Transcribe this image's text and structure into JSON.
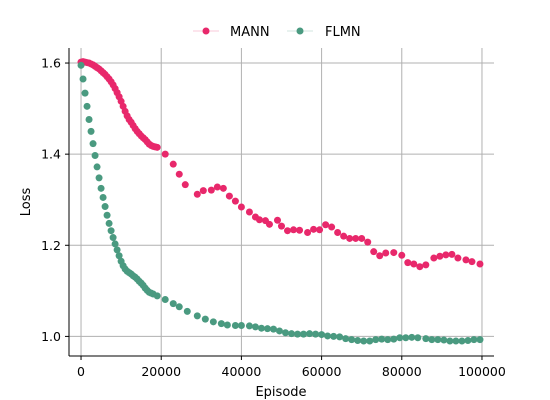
{
  "chart_data": {
    "type": "scatter",
    "title": "",
    "xlabel": "Episode",
    "ylabel": "Loss",
    "xlim": [
      -3000,
      103000
    ],
    "ylim": [
      0.957,
      1.633
    ],
    "x_ticks": [
      0,
      20000,
      40000,
      60000,
      80000,
      100000
    ],
    "x_tick_labels": [
      "0",
      "20000",
      "40000",
      "60000",
      "80000",
      "100000"
    ],
    "y_ticks": [
      1.0,
      1.2,
      1.4,
      1.6
    ],
    "y_tick_labels": [
      "1.0",
      "1.2",
      "1.4",
      "1.6"
    ],
    "grid": true,
    "legend_position": "top-center",
    "series": [
      {
        "name": "MANN",
        "color": "#e8286b",
        "points": [
          [
            0,
            1.602
          ],
          [
            500,
            1.603
          ],
          [
            1000,
            1.602
          ],
          [
            1500,
            1.601
          ],
          [
            2000,
            1.6
          ],
          [
            2500,
            1.598
          ],
          [
            3000,
            1.596
          ],
          [
            3500,
            1.593
          ],
          [
            4000,
            1.59
          ],
          [
            4500,
            1.587
          ],
          [
            5000,
            1.583
          ],
          [
            5500,
            1.579
          ],
          [
            6000,
            1.575
          ],
          [
            6500,
            1.57
          ],
          [
            7000,
            1.565
          ],
          [
            7500,
            1.559
          ],
          [
            8000,
            1.552
          ],
          [
            8500,
            1.544
          ],
          [
            9000,
            1.535
          ],
          [
            9500,
            1.526
          ],
          [
            10000,
            1.516
          ],
          [
            10500,
            1.505
          ],
          [
            11000,
            1.494
          ],
          [
            11500,
            1.484
          ],
          [
            12000,
            1.476
          ],
          [
            12500,
            1.47
          ],
          [
            13000,
            1.463
          ],
          [
            13500,
            1.456
          ],
          [
            14000,
            1.45
          ],
          [
            14500,
            1.445
          ],
          [
            15000,
            1.44
          ],
          [
            15500,
            1.436
          ],
          [
            16000,
            1.432
          ],
          [
            16500,
            1.427
          ],
          [
            17000,
            1.422
          ],
          [
            17500,
            1.419
          ],
          [
            18000,
            1.417
          ],
          [
            18500,
            1.416
          ],
          [
            19000,
            1.415
          ],
          [
            21000,
            1.4
          ],
          [
            23000,
            1.378
          ],
          [
            24500,
            1.356
          ],
          [
            26000,
            1.333
          ],
          [
            29000,
            1.312
          ],
          [
            30500,
            1.32
          ],
          [
            32500,
            1.321
          ],
          [
            34000,
            1.328
          ],
          [
            35500,
            1.325
          ],
          [
            37000,
            1.308
          ],
          [
            38500,
            1.297
          ],
          [
            40000,
            1.284
          ],
          [
            42000,
            1.273
          ],
          [
            43500,
            1.262
          ],
          [
            44500,
            1.256
          ],
          [
            46000,
            1.254
          ],
          [
            47000,
            1.246
          ],
          [
            49000,
            1.255
          ],
          [
            50000,
            1.242
          ],
          [
            51500,
            1.232
          ],
          [
            53000,
            1.234
          ],
          [
            54500,
            1.233
          ],
          [
            56500,
            1.228
          ],
          [
            58000,
            1.235
          ],
          [
            59500,
            1.234
          ],
          [
            61000,
            1.245
          ],
          [
            62500,
            1.24
          ],
          [
            64000,
            1.228
          ],
          [
            65500,
            1.22
          ],
          [
            67000,
            1.215
          ],
          [
            68500,
            1.215
          ],
          [
            70000,
            1.215
          ],
          [
            71500,
            1.207
          ],
          [
            73000,
            1.186
          ],
          [
            74500,
            1.177
          ],
          [
            76000,
            1.183
          ],
          [
            78000,
            1.184
          ],
          [
            80000,
            1.178
          ],
          [
            81500,
            1.162
          ],
          [
            83000,
            1.159
          ],
          [
            84500,
            1.153
          ],
          [
            86000,
            1.157
          ],
          [
            88000,
            1.172
          ],
          [
            89500,
            1.176
          ],
          [
            91000,
            1.179
          ],
          [
            92500,
            1.18
          ],
          [
            94000,
            1.172
          ],
          [
            96000,
            1.168
          ],
          [
            97500,
            1.164
          ],
          [
            99500,
            1.159
          ]
        ]
      },
      {
        "name": "FLMN",
        "color": "#4a9a80",
        "points": [
          [
            0,
            1.595
          ],
          [
            500,
            1.565
          ],
          [
            1000,
            1.534
          ],
          [
            1500,
            1.505
          ],
          [
            2000,
            1.476
          ],
          [
            2500,
            1.45
          ],
          [
            3000,
            1.423
          ],
          [
            3500,
            1.397
          ],
          [
            4000,
            1.372
          ],
          [
            4500,
            1.348
          ],
          [
            5000,
            1.325
          ],
          [
            5500,
            1.305
          ],
          [
            6000,
            1.285
          ],
          [
            6500,
            1.266
          ],
          [
            7000,
            1.248
          ],
          [
            7500,
            1.232
          ],
          [
            8000,
            1.217
          ],
          [
            8500,
            1.203
          ],
          [
            9000,
            1.19
          ],
          [
            9500,
            1.177
          ],
          [
            10000,
            1.165
          ],
          [
            10500,
            1.155
          ],
          [
            11000,
            1.148
          ],
          [
            11500,
            1.143
          ],
          [
            12000,
            1.14
          ],
          [
            12500,
            1.137
          ],
          [
            13000,
            1.133
          ],
          [
            13500,
            1.13
          ],
          [
            14000,
            1.126
          ],
          [
            14500,
            1.121
          ],
          [
            15000,
            1.117
          ],
          [
            15500,
            1.112
          ],
          [
            16000,
            1.106
          ],
          [
            16500,
            1.101
          ],
          [
            17000,
            1.097
          ],
          [
            17500,
            1.095
          ],
          [
            18000,
            1.093
          ],
          [
            19000,
            1.089
          ],
          [
            21000,
            1.081
          ],
          [
            23000,
            1.072
          ],
          [
            24500,
            1.065
          ],
          [
            26500,
            1.055
          ],
          [
            29000,
            1.045
          ],
          [
            31000,
            1.038
          ],
          [
            33000,
            1.032
          ],
          [
            35000,
            1.028
          ],
          [
            36500,
            1.025
          ],
          [
            38500,
            1.024
          ],
          [
            40000,
            1.024
          ],
          [
            42000,
            1.023
          ],
          [
            43500,
            1.021
          ],
          [
            45000,
            1.018
          ],
          [
            46500,
            1.017
          ],
          [
            48000,
            1.016
          ],
          [
            49500,
            1.012
          ],
          [
            51000,
            1.008
          ],
          [
            52500,
            1.006
          ],
          [
            54000,
            1.005
          ],
          [
            55500,
            1.005
          ],
          [
            57000,
            1.006
          ],
          [
            58500,
            1.005
          ],
          [
            60000,
            1.004
          ],
          [
            61500,
            1.001
          ],
          [
            63000,
            1.0
          ],
          [
            64500,
            0.999
          ],
          [
            66000,
            0.995
          ],
          [
            67500,
            0.993
          ],
          [
            69000,
            0.991
          ],
          [
            70500,
            0.99
          ],
          [
            72000,
            0.99
          ],
          [
            73500,
            0.993
          ],
          [
            75000,
            0.994
          ],
          [
            76500,
            0.993
          ],
          [
            78000,
            0.994
          ],
          [
            79500,
            0.997
          ],
          [
            81000,
            0.997
          ],
          [
            82500,
            0.998
          ],
          [
            84000,
            0.997
          ],
          [
            86000,
            0.995
          ],
          [
            87500,
            0.993
          ],
          [
            89000,
            0.993
          ],
          [
            90500,
            0.992
          ],
          [
            92000,
            0.99
          ],
          [
            93500,
            0.99
          ],
          [
            95000,
            0.99
          ],
          [
            96500,
            0.991
          ],
          [
            98000,
            0.993
          ],
          [
            99500,
            0.993
          ]
        ]
      }
    ]
  }
}
